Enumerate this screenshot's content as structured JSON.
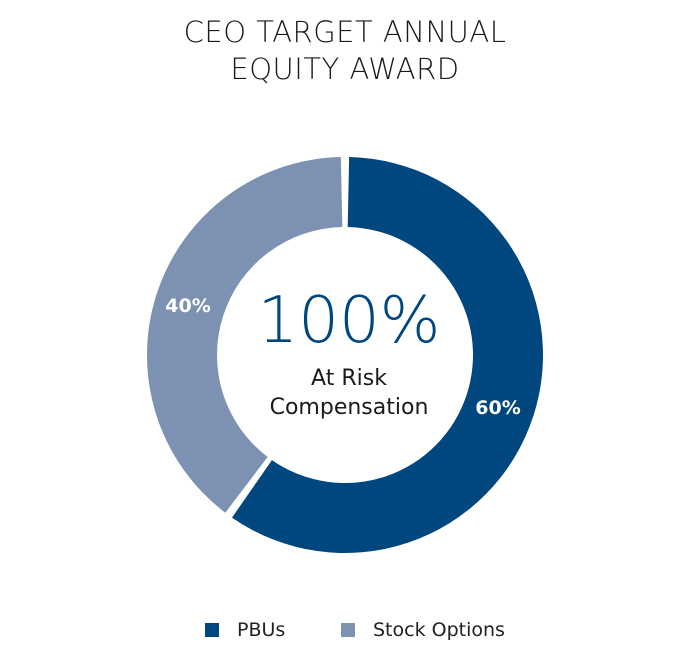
{
  "chart_data": {
    "type": "pie",
    "title_lines": [
      "CEO TARGET ANNUAL",
      "EQUITY AWARD"
    ],
    "center_value": "100%",
    "center_label_lines": [
      "At Risk",
      "Compensation"
    ],
    "slices": [
      {
        "name": "PBUs",
        "value": 60,
        "label": "60%",
        "color": "#00467f"
      },
      {
        "name": "Stock Options",
        "value": 40,
        "label": "40%",
        "color": "#7d92b2"
      }
    ],
    "legend_position": "bottom"
  }
}
